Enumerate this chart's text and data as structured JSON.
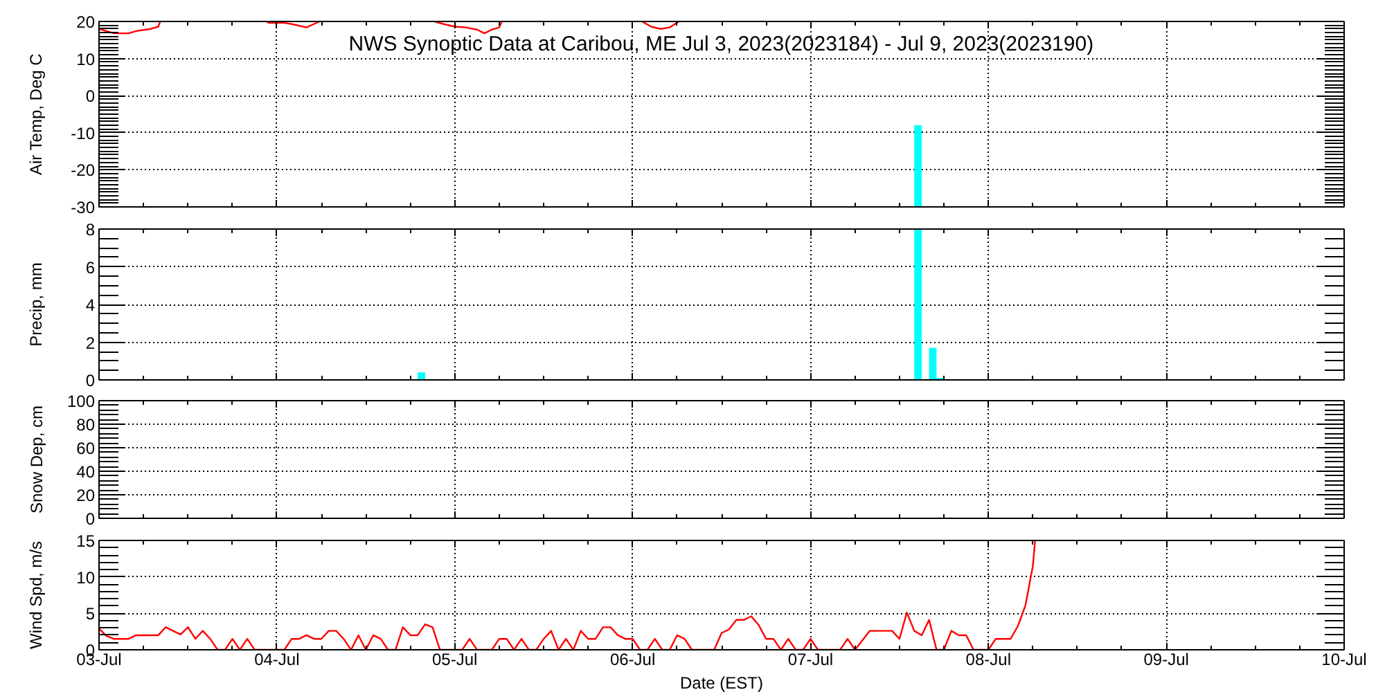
{
  "chart_data": [
    {
      "type": "line",
      "title": "NWS Synoptic Data at Caribou, ME   Jul  3, 2023(2023184) - Jul  9, 2023(2023190)",
      "ylabel": "Air Temp, Deg C",
      "tick_labels": "y",
      "grid": true,
      "xlim": [
        "2023-07-03",
        "2023-07-10"
      ],
      "xticks": [
        "2023-07-03",
        {
          "value": "2023-07-03T06:00",
          "label": null
        },
        {
          "value": "2023-07-03T12:00",
          "label": null
        },
        {
          "value": "2023-07-03T18:00",
          "label": null
        },
        "2023-07-04",
        {
          "value": "2023-07-04T06:00",
          "label": null
        },
        {
          "value": "2023-07-04T12:00",
          "label": null
        },
        {
          "value": "2023-07-04T18:00",
          "label": null
        },
        "2023-07-05",
        {
          "value": "2023-07-05T06:00",
          "label": null
        },
        {
          "value": "2023-07-05T12:00",
          "label": null
        },
        {
          "value": "2023-07-05T18:00",
          "label": null
        },
        "2023-07-06",
        {
          "value": "2023-07-06T06:00",
          "label": null
        },
        {
          "value": "2023-07-06T12:00",
          "label": null
        },
        {
          "value": "2023-07-06T18:00",
          "label": null
        },
        "2023-07-07",
        {
          "value": "2023-07-07T06:00",
          "label": null
        },
        {
          "value": "2023-07-07T12:00",
          "label": null
        },
        {
          "value": "2023-07-07T18:00",
          "label": null
        },
        "2023-07-08",
        {
          "value": "2023-07-08T06:00",
          "label": null
        },
        {
          "value": "2023-07-08T12:00",
          "label": null
        },
        {
          "value": "2023-07-08T18:00",
          "label": null
        },
        "2023-07-09",
        {
          "value": "2023-07-09T06:00",
          "label": null
        },
        {
          "value": "2023-07-09T12:00",
          "label": null
        },
        {
          "value": "2023-07-09T18:00",
          "label": null
        },
        "2023-07-10"
      ],
      "ylim": [
        -30,
        20
      ],
      "yticks": [
        -30,
        {
          "value": -29,
          "label": null
        },
        {
          "value": -28,
          "label": null
        },
        {
          "value": -27,
          "label": null
        },
        {
          "value": -26,
          "label": null
        },
        {
          "value": -25,
          "label": null
        },
        {
          "value": -24,
          "label": null
        },
        {
          "value": -23,
          "label": null
        },
        {
          "value": -22,
          "label": null
        },
        {
          "value": -21,
          "label": null
        },
        -20,
        {
          "value": -19,
          "label": null
        },
        {
          "value": -18,
          "label": null
        },
        {
          "value": -17,
          "label": null
        },
        {
          "value": -16,
          "label": null
        },
        {
          "value": -15,
          "label": null
        },
        {
          "value": -14,
          "label": null
        },
        {
          "value": -13,
          "label": null
        },
        {
          "value": -12,
          "label": null
        },
        {
          "value": -11,
          "label": null
        },
        -10,
        {
          "value": -9,
          "label": null
        },
        {
          "value": -8,
          "label": null
        },
        {
          "value": -7,
          "label": null
        },
        {
          "value": -6,
          "label": null
        },
        {
          "value": -5,
          "label": null
        },
        {
          "value": -4,
          "label": null
        },
        {
          "value": -3,
          "label": null
        },
        {
          "value": -2,
          "label": null
        },
        {
          "value": -1,
          "label": null
        },
        0,
        {
          "value": 1,
          "label": null
        },
        {
          "value": 2,
          "label": null
        },
        {
          "value": 3,
          "label": null
        },
        {
          "value": 4,
          "label": null
        },
        {
          "value": 5,
          "label": null
        },
        {
          "value": 6,
          "label": null
        },
        {
          "value": 7,
          "label": null
        },
        {
          "value": 8,
          "label": null
        },
        {
          "value": 9,
          "label": null
        },
        10,
        {
          "value": 11,
          "label": null
        },
        {
          "value": 12,
          "label": null
        },
        {
          "value": 13,
          "label": null
        },
        {
          "value": 14,
          "label": null
        },
        {
          "value": 15,
          "label": null
        },
        {
          "value": 16,
          "label": null
        },
        {
          "value": 17,
          "label": null
        },
        {
          "value": 18,
          "label": null
        },
        {
          "value": 19,
          "label": null
        },
        20
      ],
      "series": [
        {
          "color": "#ff0000",
          "x": [
            "2023-07-03T00:00",
            "2023-07-03T02:00",
            "2023-07-03T04:00",
            "2023-07-03T05:00",
            "2023-07-03T07:00",
            "2023-07-03T08:00",
            "2023-07-03T08:15",
            "2023-07-03T15:00",
            "2023-07-03T22:30",
            "2023-07-03T23:00",
            "2023-07-04T01:00",
            "2023-07-04T02:00",
            "2023-07-04T04:00",
            "2023-07-04T05:00",
            "2023-07-04T05:45",
            "2023-07-04T14:00",
            "2023-07-04T21:15",
            "2023-07-04T22:30",
            "2023-07-05T00:00",
            "2023-07-05T01:30",
            "2023-07-05T03:00",
            "2023-07-05T04:00",
            "2023-07-05T05:00",
            "2023-07-05T06:00",
            "2023-07-05T06:20",
            "2023-07-05T16:00",
            "2023-07-06T01:15",
            "2023-07-06T02:30",
            "2023-07-06T03:45",
            "2023-07-06T05:00",
            "2023-07-06T06:15"
          ],
          "values": [
            18.0,
            16.8,
            16.8,
            17.4,
            18.0,
            18.6,
            20,
            null,
            20,
            19.6,
            19.6,
            19.3,
            18.4,
            19.3,
            20,
            null,
            20,
            19.3,
            18.6,
            18.4,
            17.8,
            16.8,
            17.8,
            18.4,
            20,
            null,
            20,
            18.6,
            18.0,
            18.4,
            20
          ]
        },
        {
          "type": "bar",
          "color": "#00ffff",
          "x": [
            "2023-07-07T14:30"
          ],
          "base": [
            -30
          ],
          "values": [
            22
          ]
        }
      ]
    },
    {
      "type": "bar",
      "ylabel": "Precip, mm",
      "tick_labels": "y",
      "grid": true,
      "xlim": [
        "2023-07-03",
        "2023-07-10"
      ],
      "xticks": [
        "2023-07-03",
        {
          "value": "2023-07-03T06:00",
          "label": null
        },
        {
          "value": "2023-07-03T12:00",
          "label": null
        },
        {
          "value": "2023-07-03T18:00",
          "label": null
        },
        "2023-07-04",
        {
          "value": "2023-07-04T06:00",
          "label": null
        },
        {
          "value": "2023-07-04T12:00",
          "label": null
        },
        {
          "value": "2023-07-04T18:00",
          "label": null
        },
        "2023-07-05",
        {
          "value": "2023-07-05T06:00",
          "label": null
        },
        {
          "value": "2023-07-05T12:00",
          "label": null
        },
        {
          "value": "2023-07-05T18:00",
          "label": null
        },
        "2023-07-06",
        {
          "value": "2023-07-06T06:00",
          "label": null
        },
        {
          "value": "2023-07-06T12:00",
          "label": null
        },
        {
          "value": "2023-07-06T18:00",
          "label": null
        },
        "2023-07-07",
        {
          "value": "2023-07-07T06:00",
          "label": null
        },
        {
          "value": "2023-07-07T12:00",
          "label": null
        },
        {
          "value": "2023-07-07T18:00",
          "label": null
        },
        "2023-07-08",
        {
          "value": "2023-07-08T06:00",
          "label": null
        },
        {
          "value": "2023-07-08T12:00",
          "label": null
        },
        {
          "value": "2023-07-08T18:00",
          "label": null
        },
        "2023-07-09",
        {
          "value": "2023-07-09T06:00",
          "label": null
        },
        {
          "value": "2023-07-09T12:00",
          "label": null
        },
        {
          "value": "2023-07-09T18:00",
          "label": null
        },
        "2023-07-10"
      ],
      "ylim": [
        0,
        8
      ],
      "yticks": [
        0,
        {
          "value": 0.5,
          "label": null
        },
        {
          "value": 1,
          "label": null
        },
        {
          "value": 1.5,
          "label": null
        },
        2,
        {
          "value": 2.5,
          "label": null
        },
        {
          "value": 3,
          "label": null
        },
        {
          "value": 3.5,
          "label": null
        },
        4,
        {
          "value": 4.5,
          "label": null
        },
        {
          "value": 5,
          "label": null
        },
        {
          "value": 5.5,
          "label": null
        },
        6,
        {
          "value": 6.5,
          "label": null
        },
        {
          "value": 7,
          "label": null
        },
        {
          "value": 7.5,
          "label": null
        },
        8
      ],
      "color": "#00ffff",
      "x": [
        "2023-07-04T19:30",
        "2023-07-07T14:30",
        "2023-07-07T16:30",
        "2023-07-07T17:30"
      ],
      "values": [
        0.4,
        8,
        1.7,
        0.1
      ]
    },
    {
      "type": "line",
      "ylabel": "Snow Dep, cm",
      "tick_labels": "y",
      "grid": true,
      "xlim": [
        "2023-07-03",
        "2023-07-10"
      ],
      "xticks": [
        "2023-07-03",
        {
          "value": "2023-07-03T06:00",
          "label": null
        },
        {
          "value": "2023-07-03T12:00",
          "label": null
        },
        {
          "value": "2023-07-03T18:00",
          "label": null
        },
        "2023-07-04",
        {
          "value": "2023-07-04T06:00",
          "label": null
        },
        {
          "value": "2023-07-04T12:00",
          "label": null
        },
        {
          "value": "2023-07-04T18:00",
          "label": null
        },
        "2023-07-05",
        {
          "value": "2023-07-05T06:00",
          "label": null
        },
        {
          "value": "2023-07-05T12:00",
          "label": null
        },
        {
          "value": "2023-07-05T18:00",
          "label": null
        },
        "2023-07-06",
        {
          "value": "2023-07-06T06:00",
          "label": null
        },
        {
          "value": "2023-07-06T12:00",
          "label": null
        },
        {
          "value": "2023-07-06T18:00",
          "label": null
        },
        "2023-07-07",
        {
          "value": "2023-07-07T06:00",
          "label": null
        },
        {
          "value": "2023-07-07T12:00",
          "label": null
        },
        {
          "value": "2023-07-07T18:00",
          "label": null
        },
        "2023-07-08",
        {
          "value": "2023-07-08T06:00",
          "label": null
        },
        {
          "value": "2023-07-08T12:00",
          "label": null
        },
        {
          "value": "2023-07-08T18:00",
          "label": null
        },
        "2023-07-09",
        {
          "value": "2023-07-09T06:00",
          "label": null
        },
        {
          "value": "2023-07-09T12:00",
          "label": null
        },
        {
          "value": "2023-07-09T18:00",
          "label": null
        },
        "2023-07-10"
      ],
      "ylim": [
        0,
        100
      ],
      "yticks": [
        0,
        {
          "value": 4,
          "label": null
        },
        {
          "value": 8,
          "label": null
        },
        {
          "value": 12,
          "label": null
        },
        {
          "value": 16,
          "label": null
        },
        20,
        {
          "value": 24,
          "label": null
        },
        {
          "value": 28,
          "label": null
        },
        {
          "value": 32,
          "label": null
        },
        {
          "value": 36,
          "label": null
        },
        40,
        {
          "value": 44,
          "label": null
        },
        {
          "value": 48,
          "label": null
        },
        {
          "value": 52,
          "label": null
        },
        {
          "value": 56,
          "label": null
        },
        60,
        {
          "value": 64,
          "label": null
        },
        {
          "value": 68,
          "label": null
        },
        {
          "value": 72,
          "label": null
        },
        {
          "value": 76,
          "label": null
        },
        80,
        {
          "value": 84,
          "label": null
        },
        {
          "value": 88,
          "label": null
        },
        {
          "value": 92,
          "label": null
        },
        {
          "value": 96,
          "label": null
        },
        100
      ]
    },
    {
      "type": "line",
      "ylabel": "Wind Spd, m/s",
      "xlabel": "Date (EST)",
      "grid": true,
      "xlim": [
        "2023-07-03",
        "2023-07-10"
      ],
      "xticks": [
        {
          "value": "2023-07-03",
          "label": "03-Jul"
        },
        {
          "value": "2023-07-03T06:00",
          "label": null
        },
        {
          "value": "2023-07-03T12:00",
          "label": null
        },
        {
          "value": "2023-07-03T18:00",
          "label": null
        },
        {
          "value": "2023-07-04",
          "label": "04-Jul"
        },
        {
          "value": "2023-07-04T06:00",
          "label": null
        },
        {
          "value": "2023-07-04T12:00",
          "label": null
        },
        {
          "value": "2023-07-04T18:00",
          "label": null
        },
        {
          "value": "2023-07-05",
          "label": "05-Jul"
        },
        {
          "value": "2023-07-05T06:00",
          "label": null
        },
        {
          "value": "2023-07-05T12:00",
          "label": null
        },
        {
          "value": "2023-07-05T18:00",
          "label": null
        },
        {
          "value": "2023-07-06",
          "label": "06-Jul"
        },
        {
          "value": "2023-07-06T06:00",
          "label": null
        },
        {
          "value": "2023-07-06T12:00",
          "label": null
        },
        {
          "value": "2023-07-06T18:00",
          "label": null
        },
        {
          "value": "2023-07-07",
          "label": "07-Jul"
        },
        {
          "value": "2023-07-07T06:00",
          "label": null
        },
        {
          "value": "2023-07-07T12:00",
          "label": null
        },
        {
          "value": "2023-07-07T18:00",
          "label": null
        },
        {
          "value": "2023-07-08",
          "label": "08-Jul"
        },
        {
          "value": "2023-07-08T06:00",
          "label": null
        },
        {
          "value": "2023-07-08T12:00",
          "label": null
        },
        {
          "value": "2023-07-08T18:00",
          "label": null
        },
        {
          "value": "2023-07-09",
          "label": "09-Jul"
        },
        {
          "value": "2023-07-09T06:00",
          "label": null
        },
        {
          "value": "2023-07-09T12:00",
          "label": null
        },
        {
          "value": "2023-07-09T18:00",
          "label": null
        },
        {
          "value": "2023-07-10",
          "label": "10-Jul"
        }
      ],
      "ylim": [
        0,
        15
      ],
      "yticks": [
        0,
        {
          "value": 1,
          "label": null
        },
        {
          "value": 2,
          "label": null
        },
        {
          "value": 3,
          "label": null
        },
        {
          "value": 4,
          "label": null
        },
        5,
        {
          "value": 6,
          "label": null
        },
        {
          "value": 7,
          "label": null
        },
        {
          "value": 8,
          "label": null
        },
        {
          "value": 9,
          "label": null
        },
        10,
        {
          "value": 11,
          "label": null
        },
        {
          "value": 12,
          "label": null
        },
        {
          "value": 13,
          "label": null
        },
        {
          "value": 14,
          "label": null
        },
        15
      ],
      "series": [
        {
          "color": "#ff0000",
          "x": [
            "2023-07-03T00:00",
            "2023-07-03T01:00",
            "2023-07-03T02:00",
            "2023-07-03T03:00",
            "2023-07-03T04:00",
            "2023-07-03T05:00",
            "2023-07-03T06:00",
            "2023-07-03T07:00",
            "2023-07-03T08:00",
            "2023-07-03T09:00",
            "2023-07-03T10:00",
            "2023-07-03T11:00",
            "2023-07-03T12:00",
            "2023-07-03T13:00",
            "2023-07-03T14:00",
            "2023-07-03T15:00",
            "2023-07-03T16:00",
            "2023-07-03T17:00",
            "2023-07-03T18:00",
            "2023-07-03T19:00",
            "2023-07-03T20:00",
            "2023-07-03T21:00",
            "2023-07-03T22:00",
            "2023-07-03T23:00",
            "2023-07-04T00:00",
            "2023-07-04T01:00",
            "2023-07-04T02:00",
            "2023-07-04T03:00",
            "2023-07-04T04:00",
            "2023-07-04T05:00",
            "2023-07-04T06:00",
            "2023-07-04T07:00",
            "2023-07-04T08:00",
            "2023-07-04T09:00",
            "2023-07-04T10:00",
            "2023-07-04T11:00",
            "2023-07-04T12:00",
            "2023-07-04T13:00",
            "2023-07-04T14:00",
            "2023-07-04T15:00",
            "2023-07-04T16:00",
            "2023-07-04T17:00",
            "2023-07-04T18:00",
            "2023-07-04T19:00",
            "2023-07-04T20:00",
            "2023-07-04T21:00",
            "2023-07-04T22:00",
            "2023-07-04T23:00",
            "2023-07-05T00:00",
            "2023-07-05T01:00",
            "2023-07-05T02:00",
            "2023-07-05T03:00",
            "2023-07-05T04:00",
            "2023-07-05T05:00",
            "2023-07-05T06:00",
            "2023-07-05T07:00",
            "2023-07-05T08:00",
            "2023-07-05T09:00",
            "2023-07-05T10:00",
            "2023-07-05T11:00",
            "2023-07-05T12:00",
            "2023-07-05T13:00",
            "2023-07-05T14:00",
            "2023-07-05T15:00",
            "2023-07-05T16:00",
            "2023-07-05T17:00",
            "2023-07-05T18:00",
            "2023-07-05T19:00",
            "2023-07-05T20:00",
            "2023-07-05T21:00",
            "2023-07-05T22:00",
            "2023-07-05T23:00",
            "2023-07-06T00:00",
            "2023-07-06T01:00",
            "2023-07-06T02:00",
            "2023-07-06T03:00",
            "2023-07-06T04:00",
            "2023-07-06T05:00",
            "2023-07-06T06:00",
            "2023-07-06T07:00",
            "2023-07-06T08:00",
            "2023-07-06T09:00",
            "2023-07-06T10:00",
            "2023-07-06T11:00",
            "2023-07-06T12:00",
            "2023-07-06T13:00",
            "2023-07-06T14:00",
            "2023-07-06T15:00",
            "2023-07-06T16:00",
            "2023-07-06T17:00",
            "2023-07-06T18:00",
            "2023-07-06T19:00",
            "2023-07-06T20:00",
            "2023-07-06T21:00",
            "2023-07-06T22:00",
            "2023-07-06T23:00",
            "2023-07-07T00:00",
            "2023-07-07T01:00",
            "2023-07-07T02:00",
            "2023-07-07T03:00",
            "2023-07-07T04:00",
            "2023-07-07T05:00",
            "2023-07-07T06:00",
            "2023-07-07T07:00",
            "2023-07-07T08:00",
            "2023-07-07T09:00",
            "2023-07-07T10:00",
            "2023-07-07T11:00",
            "2023-07-07T12:00",
            "2023-07-07T13:00",
            "2023-07-07T14:00",
            "2023-07-07T15:00",
            "2023-07-07T16:00",
            "2023-07-07T17:00",
            "2023-07-07T18:00",
            "2023-07-07T19:00",
            "2023-07-07T20:00",
            "2023-07-07T21:00",
            "2023-07-07T22:00",
            "2023-07-07T23:00",
            "2023-07-08T00:00",
            "2023-07-08T01:00",
            "2023-07-08T02:00",
            "2023-07-08T03:00",
            "2023-07-08T04:00",
            "2023-07-08T05:00",
            "2023-07-08T06:00",
            "2023-07-08T06:18"
          ],
          "values": [
            2.9,
            1.9,
            1.5,
            1.5,
            1.5,
            2.0,
            2.0,
            2.0,
            2.0,
            3.1,
            2.6,
            2.1,
            3.1,
            1.5,
            2.6,
            1.5,
            0,
            0,
            1.5,
            0,
            1.5,
            0,
            0,
            0,
            0,
            0,
            1.5,
            1.5,
            2.0,
            1.5,
            1.5,
            2.6,
            2.6,
            1.5,
            0,
            2.0,
            0,
            2.0,
            1.5,
            0,
            0,
            3.1,
            2.0,
            2.0,
            3.5,
            3.1,
            0,
            0,
            0,
            0,
            1.5,
            0,
            0,
            0,
            1.5,
            1.5,
            0,
            1.5,
            0,
            0,
            1.5,
            2.6,
            0,
            1.5,
            0,
            2.6,
            1.5,
            1.5,
            3.1,
            3.1,
            2.0,
            1.5,
            1.5,
            0,
            0,
            1.5,
            0,
            0,
            2.0,
            1.5,
            0,
            0,
            0,
            0,
            2.3,
            2.8,
            4.1,
            4.1,
            4.6,
            3.4,
            1.5,
            1.5,
            0,
            1.5,
            0,
            0,
            1.5,
            0,
            0,
            0,
            0,
            1.5,
            0,
            1.3,
            2.6,
            2.6,
            2.6,
            2.6,
            1.5,
            5.1,
            2.6,
            2.0,
            4.1,
            0,
            0,
            2.6,
            2.0,
            2.0,
            0,
            0,
            0,
            1.5,
            1.5,
            1.5,
            3.3,
            6.1,
            11.5,
            15
          ]
        }
      ]
    }
  ]
}
